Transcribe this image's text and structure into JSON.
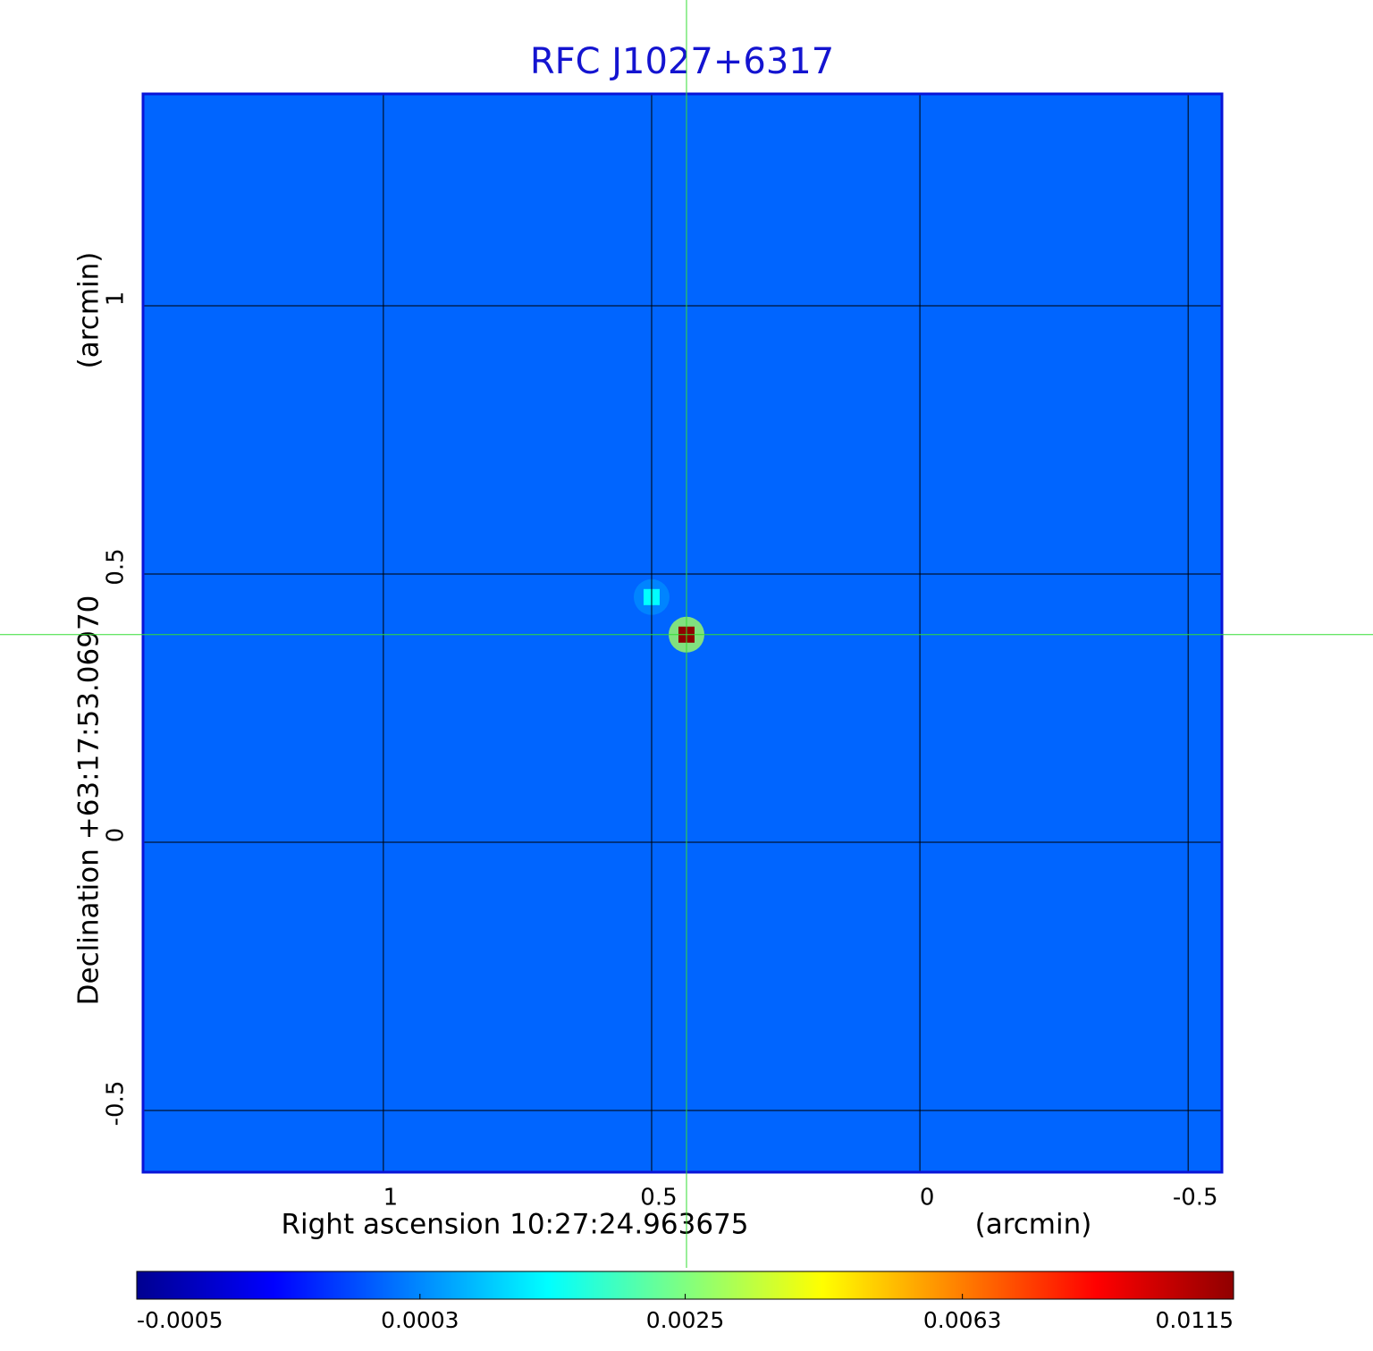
{
  "chart_data": {
    "type": "image",
    "title": "RFC J1027+6317",
    "x_label": "Right ascension  10:27:24.963675",
    "x_unit": "(arcmin)",
    "y_label": "Declination  +63:17:53.06970",
    "y_unit": "(arcmin)",
    "xlim": [
      1.448,
      -0.563
    ],
    "xticks": [
      1.0,
      0.5,
      0.0,
      -0.5
    ],
    "ylim": [
      -0.615,
      1.395
    ],
    "yticks": [
      1.0,
      0.5,
      0.0,
      -0.5
    ],
    "grid": true,
    "frame_color": "#0a14d8",
    "title_color": "#1414d0",
    "background": 0.0001,
    "sources": [
      {
        "x": 0.435,
        "y": 0.387,
        "value": 0.0115
      },
      {
        "x": 0.5,
        "y": 0.457,
        "value": 0.0012
      }
    ],
    "crosshair": {
      "x": 0.435,
      "y": 0.387,
      "color": "#33dd33"
    },
    "colorbar": {
      "lim": [
        -0.0005,
        0.0115
      ],
      "scale": "sqrt",
      "ticks": [
        -0.0005,
        0.0003,
        0.0025,
        0.0063,
        0.0115
      ],
      "colormap": [
        "#000090",
        "#0000ff",
        "#0080ff",
        "#00ffff",
        "#80ff80",
        "#ffff00",
        "#ff8000",
        "#ff0000",
        "#900000"
      ]
    }
  }
}
